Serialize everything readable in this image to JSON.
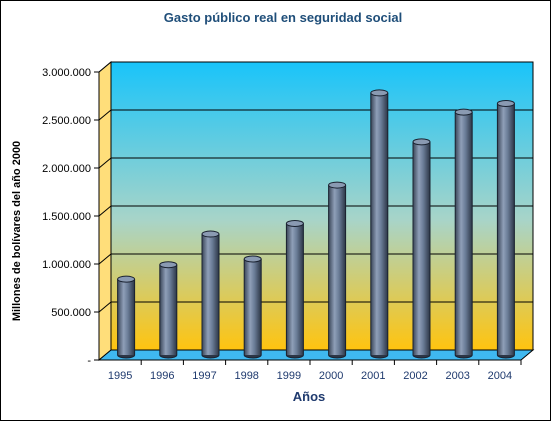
{
  "chart_data": {
    "type": "bar",
    "title": "Gasto público real en seguridad social",
    "xlabel": "Años",
    "ylabel": "Millones de bolívares del año 2000",
    "categories": [
      "1995",
      "1996",
      "1997",
      "1998",
      "1999",
      "2000",
      "2001",
      "2002",
      "2003",
      "2004"
    ],
    "values": [
      790000,
      940000,
      1260000,
      1000000,
      1370000,
      1770000,
      2730000,
      2220000,
      2530000,
      2620000
    ],
    "ylim": [
      0,
      3000000
    ],
    "yticks": [
      0,
      500000,
      1000000,
      1500000,
      2000000,
      2500000,
      3000000
    ],
    "ytick_labels": [
      "-",
      "500.000",
      "1.000.000",
      "1.500.000",
      "2.000.000",
      "2.500.000",
      "3.000.000"
    ],
    "grid": true,
    "legend": "none",
    "colors": {
      "title": "#1f4e79",
      "axis_label": "#1f3a6e",
      "bars": "#5f7390",
      "background_top": "#19c4fa",
      "background_bottom": "#ffc40f",
      "floor": "#3fb8f0"
    }
  }
}
